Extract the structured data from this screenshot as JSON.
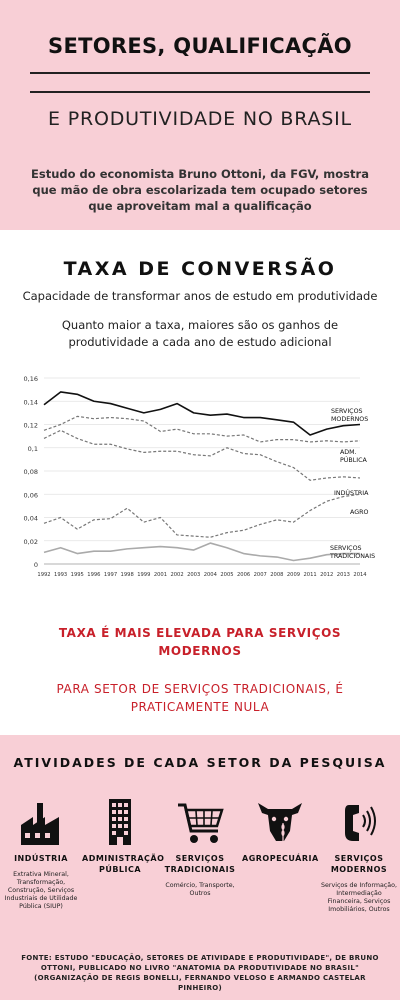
{
  "header": {
    "title_line1": "SETORES, QUALIFICAÇÃO",
    "title_line2": "E PRODUTIVIDADE NO BRASIL",
    "intro": "Estudo do economista Bruno Ottoni, da FGV, mostra que mão de obra escolarizada tem ocupado setores que aproveitam mal a qualificação"
  },
  "chart_section": {
    "heading": "TAXA DE CONVERSÃO",
    "subtitle": "Capacidade de transformar anos de estudo em produtividade",
    "note": "Quanto maior a taxa, maiores são os ganhos de produtividade a cada ano de estudo adicional"
  },
  "chart_data": {
    "type": "line",
    "x": [
      1992,
      1993,
      1995,
      1996,
      1997,
      1998,
      1999,
      2001,
      2002,
      2003,
      2004,
      2005,
      2006,
      2007,
      2008,
      2009,
      2011,
      2012,
      2013,
      2014
    ],
    "y_ticks": [
      "0",
      "0,02",
      "0,04",
      "0,06",
      "0,08",
      "0,1",
      "0,12",
      "0,14",
      "0,16"
    ],
    "ylim": [
      0,
      0.16
    ],
    "grid": true,
    "series": [
      {
        "name": "SERVIÇOS MODERNOS",
        "label_lines": [
          "SERVIÇOS",
          "MODERNOS"
        ],
        "color": "#111111",
        "style": "solid",
        "width": 1.6,
        "values": [
          0.137,
          0.148,
          0.146,
          0.14,
          0.138,
          0.134,
          0.13,
          0.133,
          0.138,
          0.13,
          0.128,
          0.129,
          0.126,
          0.126,
          0.124,
          0.122,
          0.111,
          0.116,
          0.119,
          0.12
        ]
      },
      {
        "name": "ADM. PÚBLICA",
        "label_lines": [
          "ADM.",
          "PÚBLICA"
        ],
        "color": "#777777",
        "style": "dashed",
        "width": 1.2,
        "values": [
          0.115,
          0.12,
          0.127,
          0.125,
          0.126,
          0.125,
          0.123,
          0.114,
          0.116,
          0.112,
          0.112,
          0.11,
          0.111,
          0.105,
          0.107,
          0.107,
          0.105,
          0.106,
          0.105,
          0.106
        ]
      },
      {
        "name": "INDÚSTRIA",
        "label_lines": [
          "INDÚSTRIA"
        ],
        "color": "#777777",
        "style": "dashed",
        "width": 1.2,
        "values": [
          0.108,
          0.115,
          0.108,
          0.103,
          0.103,
          0.099,
          0.096,
          0.097,
          0.097,
          0.094,
          0.093,
          0.1,
          0.095,
          0.094,
          0.088,
          0.083,
          0.072,
          0.074,
          0.075,
          0.074
        ]
      },
      {
        "name": "AGRO",
        "label_lines": [
          "AGRO"
        ],
        "color": "#777777",
        "style": "dashed",
        "width": 1.2,
        "values": [
          0.035,
          0.04,
          0.03,
          0.038,
          0.039,
          0.048,
          0.036,
          0.04,
          0.025,
          0.024,
          0.023,
          0.027,
          0.029,
          0.034,
          0.038,
          0.036,
          0.046,
          0.054,
          0.058,
          0.06
        ]
      },
      {
        "name": "SERVIÇOS TRADICIONAIS",
        "label_lines": [
          "SERVIÇOS",
          "TRADICIONAIS"
        ],
        "color": "#aaaaaa",
        "style": "solid",
        "width": 1.6,
        "values": [
          0.01,
          0.014,
          0.009,
          0.011,
          0.011,
          0.013,
          0.014,
          0.015,
          0.014,
          0.012,
          0.018,
          0.014,
          0.009,
          0.007,
          0.006,
          0.003,
          0.005,
          0.008,
          0.009,
          0.009
        ]
      }
    ]
  },
  "callouts": {
    "line1": "TAXA É MAIS ELEVADA PARA SERVIÇOS MODERNOS",
    "line2": "PARA SETOR DE SERVIÇOS TRADICIONAIS, É PRATICAMENTE NULA",
    "color": "#c8202a"
  },
  "activities": {
    "heading": "ATIVIDADES DE CADA SETOR DA PESQUISA",
    "sectors": [
      {
        "name": "INDÚSTRIA",
        "icon": "factory-icon",
        "desc": "Extrativa Mineral, Transformação, Construção, Serviços Industriais de Utilidade Pública (SIUP)"
      },
      {
        "name": "ADMINISTRAÇÃO PÚBLICA",
        "icon": "building-icon",
        "desc": ""
      },
      {
        "name": "SERVIÇOS TRADICIONAIS",
        "icon": "shopping-cart-icon",
        "desc": "Comércio, Transporte, Outros"
      },
      {
        "name": "AGROPECUÁRIA",
        "icon": "cow-wheat-icon",
        "desc": ""
      },
      {
        "name": "SERVIÇOS MODERNOS",
        "icon": "phone-icon",
        "desc": "Serviços de Informação, Intermediação Financeira, Serviços Imobiliários, Outros"
      }
    ],
    "source": "FONTE: ESTUDO \"EDUCAÇÃO, SETORES DE ATIVIDADE E PRODUTIVIDADE\", DE BRUNO OTTONI, PUBLICADO NO LIVRO \"ANATOMIA DA PRODUTIVIDADE NO BRASIL\" (ORGANIZAÇÃO DE REGIS BONELLI, FERNANDO VELOSO E ARMANDO CASTELAR PINHEIRO)"
  },
  "colors": {
    "pink_background": "#f8cfd6",
    "accent_red": "#c8202a"
  }
}
